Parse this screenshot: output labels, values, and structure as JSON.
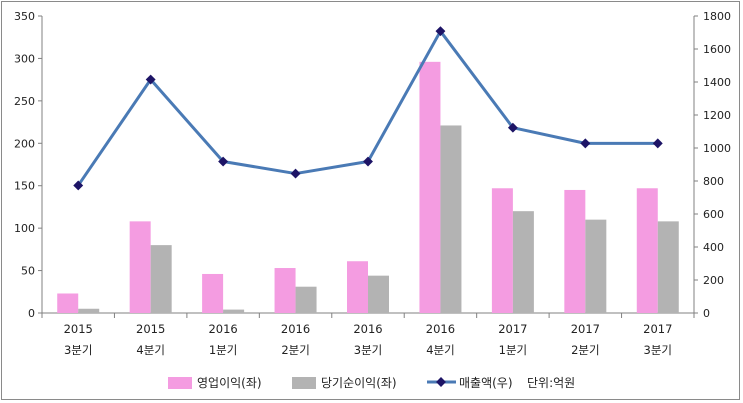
{
  "chart_data": {
    "type": "bar+line",
    "categories_line1": [
      "2015",
      "2015",
      "2016",
      "2016",
      "2016",
      "2016",
      "2017",
      "2017",
      "2017"
    ],
    "categories_line2": [
      "3분기",
      "4분기",
      "1분기",
      "2분기",
      "3분기",
      "4분기",
      "1분기",
      "2분기",
      "3분기"
    ],
    "series": [
      {
        "name": "영업이익(좌)",
        "kind": "bar",
        "axis": "left",
        "color": "#f49ce1",
        "values": [
          23,
          108,
          46,
          53,
          61,
          296,
          147,
          145,
          147
        ]
      },
      {
        "name": "당기순이익(좌)",
        "kind": "bar",
        "axis": "left",
        "color": "#b3b3b3",
        "values": [
          5,
          80,
          4,
          31,
          44,
          221,
          120,
          110,
          108
        ]
      },
      {
        "name": "매출액(우)",
        "kind": "line",
        "axis": "right",
        "color": "#4a7ab5",
        "marker_color": "#1d1466",
        "values": [
          773,
          1415,
          918,
          845,
          918,
          1708,
          1123,
          1028,
          1028
        ]
      }
    ],
    "left_axis": {
      "ylim": [
        0,
        350
      ],
      "ticks": [
        0,
        50,
        100,
        150,
        200,
        250,
        300,
        350
      ]
    },
    "right_axis": {
      "ylim": [
        0,
        1800
      ],
      "ticks": [
        0,
        200,
        400,
        600,
        800,
        1000,
        1200,
        1400,
        1600,
        1800
      ]
    },
    "unit_note": "단위:억원",
    "grid": false,
    "legend_placement": "bottom"
  }
}
